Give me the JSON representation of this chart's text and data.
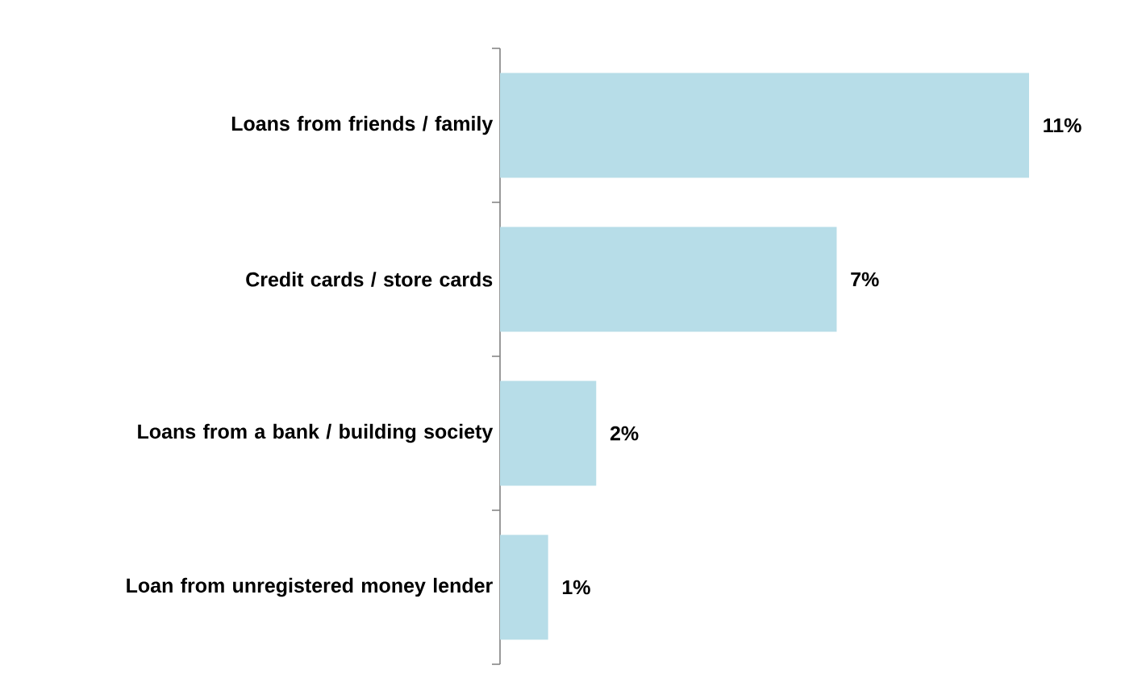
{
  "chart_data": {
    "type": "bar",
    "orientation": "horizontal",
    "categories": [
      "Loans from friends / family",
      "Credit cards / store cards",
      "Loans from a bank / building society",
      "Loan from unregistered money lender"
    ],
    "values": [
      11,
      7,
      2,
      1
    ],
    "value_labels": [
      "11%",
      "7%",
      "2%",
      "1%"
    ],
    "color": "#b7dde8"
  }
}
